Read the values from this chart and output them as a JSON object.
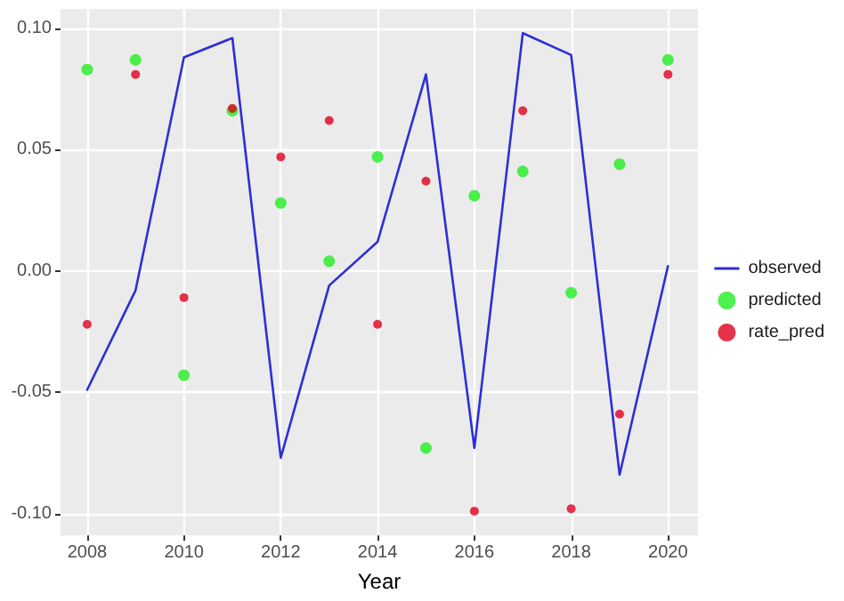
{
  "chart_data": {
    "type": "scatter",
    "xlabel": "Year",
    "x": [
      2008,
      2009,
      2010,
      2011,
      2012,
      2013,
      2014,
      2015,
      2016,
      2017,
      2018,
      2019,
      2020
    ],
    "series": [
      {
        "name": "observed",
        "type": "line",
        "marker": "none",
        "color": "#2e2ed6",
        "values": [
          -0.049,
          -0.008,
          0.088,
          0.096,
          -0.077,
          -0.006,
          0.012,
          0.081,
          -0.073,
          0.098,
          0.089,
          -0.084,
          0.002
        ]
      },
      {
        "name": "predicted",
        "color": "#22ee22",
        "values": [
          0.083,
          0.087,
          -0.043,
          0.066,
          0.028,
          0.004,
          0.047,
          -0.073,
          0.031,
          0.041,
          -0.009,
          0.044,
          0.087
        ]
      },
      {
        "name": "rate_pred",
        "color": "#e0001b",
        "values": [
          -0.022,
          0.081,
          -0.011,
          0.067,
          0.047,
          0.062,
          -0.022,
          0.037,
          -0.099,
          0.066,
          -0.098,
          -0.059,
          0.081
        ]
      }
    ],
    "xlim": [
      2007.45,
      2020.62
    ],
    "xticks": [
      2008,
      2010,
      2012,
      2014,
      2016,
      2018,
      2020
    ],
    "ylim": [
      -0.109,
      0.108
    ],
    "yticks": [
      {
        "value": -0.1,
        "label": "-0.10"
      },
      {
        "value": -0.05,
        "label": "-0.05"
      },
      {
        "value": 0,
        "label": "0.00"
      },
      {
        "value": 0.05,
        "label": "0.05"
      },
      {
        "value": 0.1,
        "label": "0.10"
      }
    ],
    "grid": true,
    "legend": "right",
    "marker": "circle"
  }
}
